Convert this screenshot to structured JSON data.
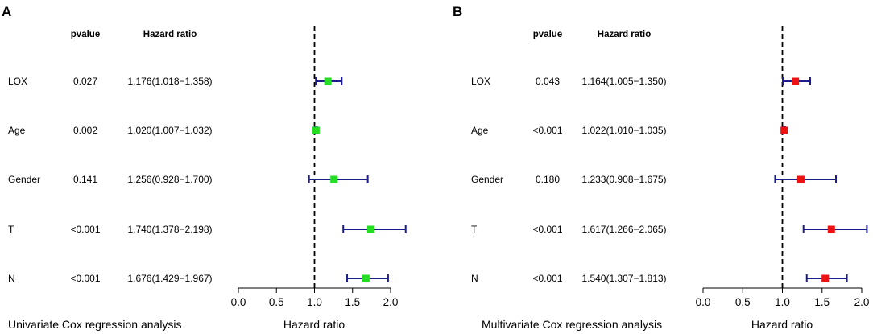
{
  "chart_data": [
    {
      "type": "forest",
      "panel_label": "A",
      "title": "Univariate Cox regression analysis",
      "xlabel": "Hazard ratio",
      "col_pvalue": "pvalue",
      "col_hr": "Hazard ratio",
      "xlim": [
        0,
        2
      ],
      "ticks": [
        "0.0",
        "0.5",
        "1.0",
        "1.5",
        "2.0"
      ],
      "tick_values": [
        0,
        0.5,
        1,
        1.5,
        2
      ],
      "reference_line": 1,
      "marker_color": "#22dd22",
      "ci_color": "#1c1c8c",
      "rows": [
        {
          "name": "LOX",
          "pvalue": "0.027",
          "hr_text": "1.176(1.018−1.358)",
          "hr": 1.176,
          "lo": 1.018,
          "hi": 1.358
        },
        {
          "name": "Age",
          "pvalue": "0.002",
          "hr_text": "1.020(1.007−1.032)",
          "hr": 1.02,
          "lo": 1.007,
          "hi": 1.032
        },
        {
          "name": "Gender",
          "pvalue": "0.141",
          "hr_text": "1.256(0.928−1.700)",
          "hr": 1.256,
          "lo": 0.928,
          "hi": 1.7
        },
        {
          "name": "T",
          "pvalue": "<0.001",
          "hr_text": "1.740(1.378−2.198)",
          "hr": 1.74,
          "lo": 1.378,
          "hi": 2.198
        },
        {
          "name": "N",
          "pvalue": "<0.001",
          "hr_text": "1.676(1.429−1.967)",
          "hr": 1.676,
          "lo": 1.429,
          "hi": 1.967
        }
      ]
    },
    {
      "type": "forest",
      "panel_label": "B",
      "title": "Multivariate Cox regression analysis",
      "xlabel": "Hazard ratio",
      "col_pvalue": "pvalue",
      "col_hr": "Hazard ratio",
      "xlim": [
        0,
        2
      ],
      "ticks": [
        "0.0",
        "0.5",
        "1.0",
        "1.5",
        "2.0"
      ],
      "tick_values": [
        0,
        0.5,
        1,
        1.5,
        2
      ],
      "reference_line": 1,
      "marker_color": "#ee1111",
      "ci_color": "#1c1c8c",
      "rows": [
        {
          "name": "LOX",
          "pvalue": "0.043",
          "hr_text": "1.164(1.005−1.350)",
          "hr": 1.164,
          "lo": 1.005,
          "hi": 1.35
        },
        {
          "name": "Age",
          "pvalue": "<0.001",
          "hr_text": "1.022(1.010−1.035)",
          "hr": 1.022,
          "lo": 1.01,
          "hi": 1.035
        },
        {
          "name": "Gender",
          "pvalue": "0.180",
          "hr_text": "1.233(0.908−1.675)",
          "hr": 1.233,
          "lo": 0.908,
          "hi": 1.675
        },
        {
          "name": "T",
          "pvalue": "<0.001",
          "hr_text": "1.617(1.266−2.065)",
          "hr": 1.617,
          "lo": 1.266,
          "hi": 2.065
        },
        {
          "name": "N",
          "pvalue": "<0.001",
          "hr_text": "1.540(1.307−1.813)",
          "hr": 1.54,
          "lo": 1.307,
          "hi": 1.813
        }
      ]
    }
  ]
}
